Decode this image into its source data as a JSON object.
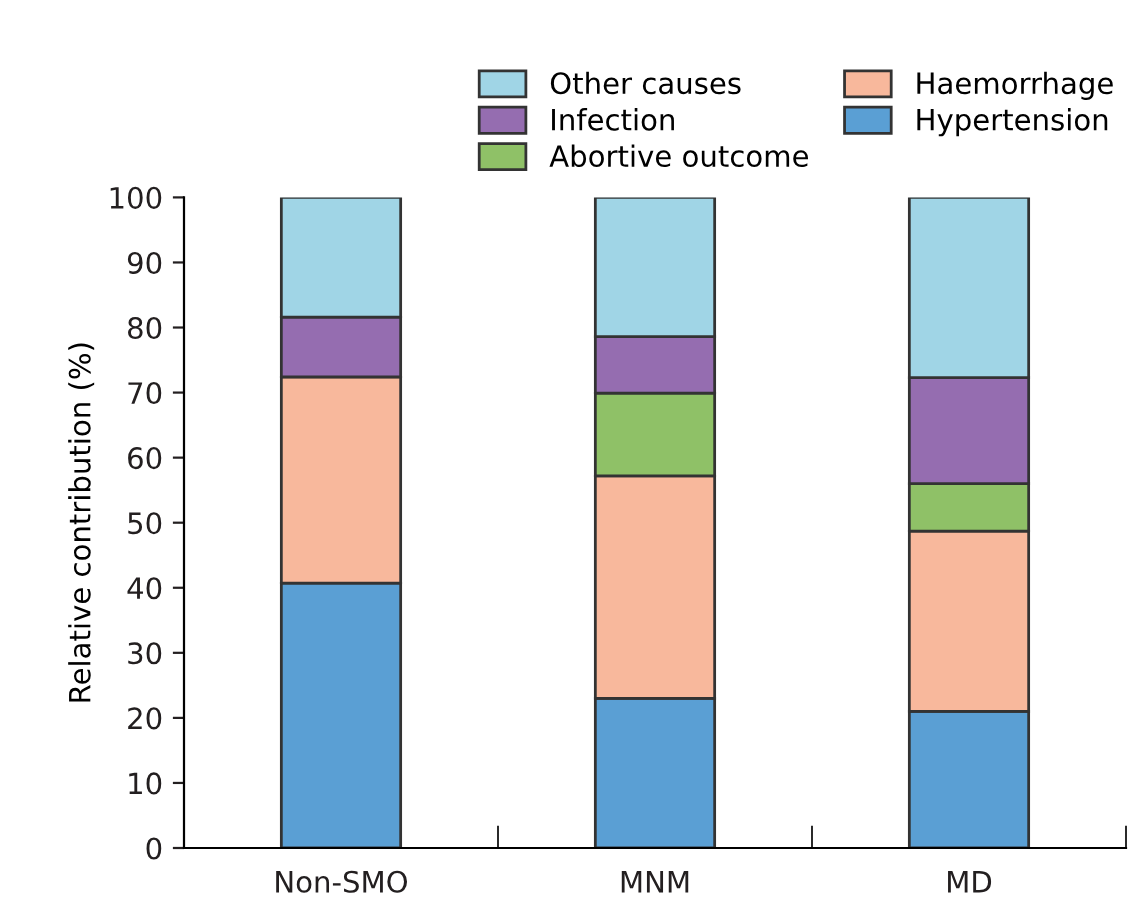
{
  "chart_data": {
    "type": "bar",
    "stacked": true,
    "ylabel": "Relative contribution (%)",
    "categories": [
      "Non-SMO",
      "MNM",
      "MD"
    ],
    "series": [
      {
        "name": "Hypertension",
        "color": "#5a9fd4",
        "values": [
          40.7,
          23.0,
          21.0
        ]
      },
      {
        "name": "Haemorrhage",
        "color": "#f8b89c",
        "values": [
          31.7,
          34.2,
          27.7
        ]
      },
      {
        "name": "Abortive outcome",
        "color": "#8fc167",
        "values": [
          0,
          12.7,
          7.3
        ]
      },
      {
        "name": "Infection",
        "color": "#956db0",
        "values": [
          9.2,
          8.7,
          16.3
        ]
      },
      {
        "name": "Other causes",
        "color": "#a0d5e6",
        "values": [
          18.4,
          21.4,
          27.7
        ]
      }
    ],
    "ylim": [
      0,
      100
    ],
    "yticks": [
      0,
      10,
      20,
      30,
      40,
      50,
      60,
      70,
      80,
      90,
      100
    ],
    "grid": false,
    "legend": "top right"
  }
}
